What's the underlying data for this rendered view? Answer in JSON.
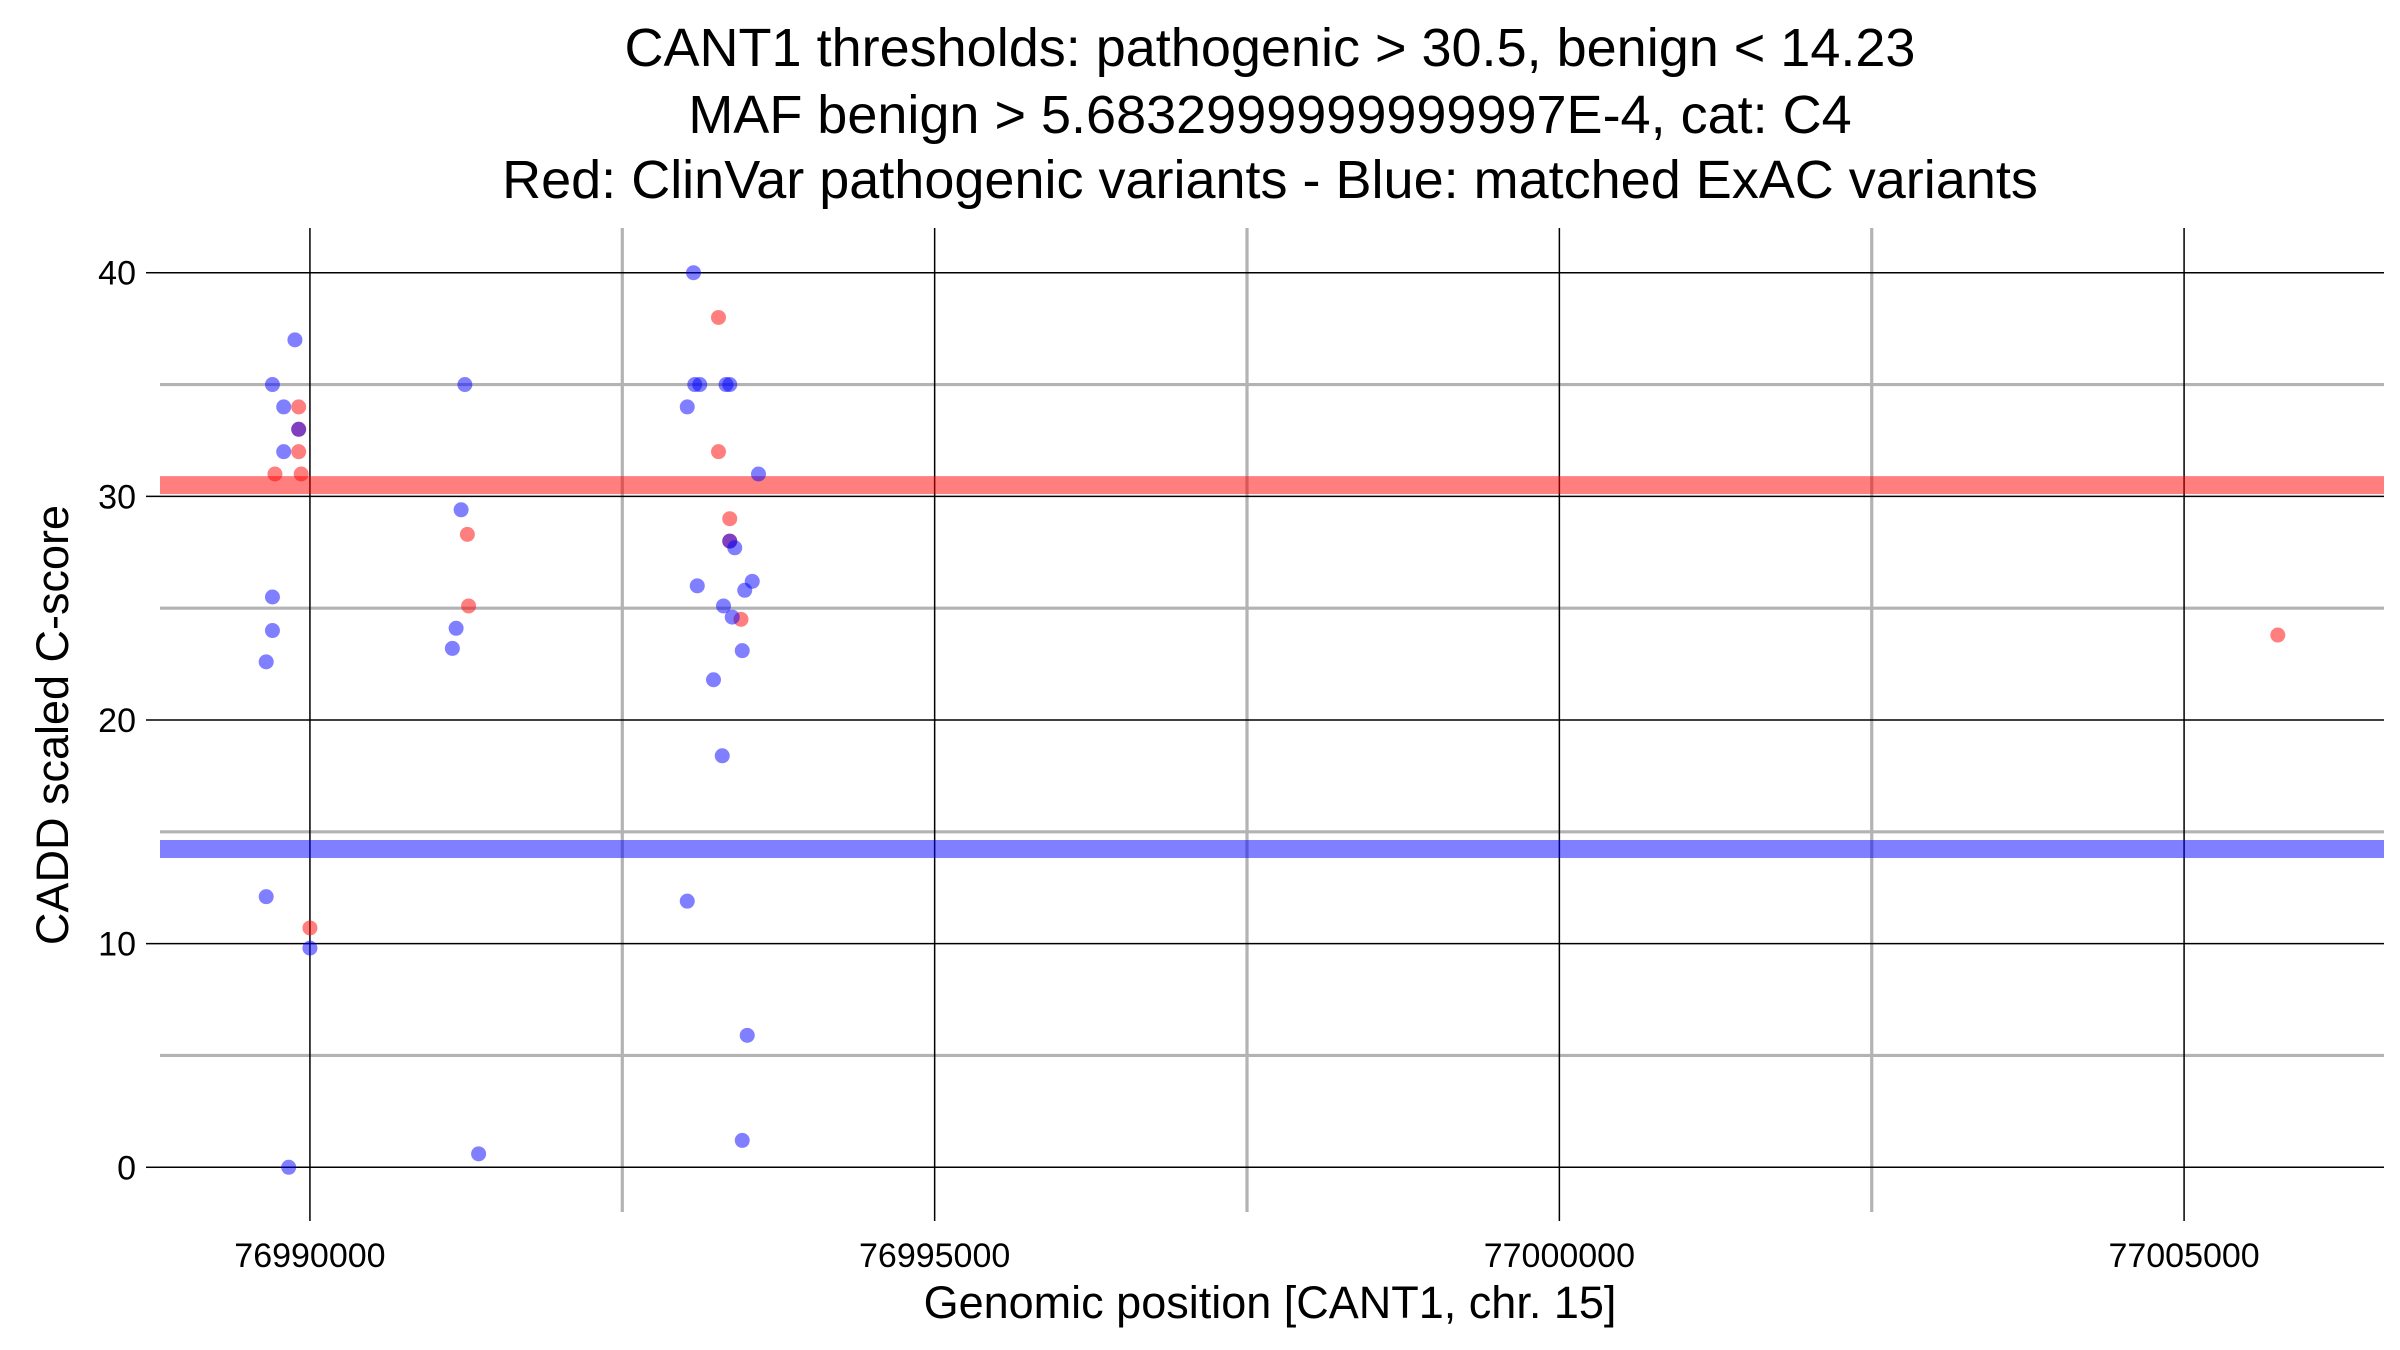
{
  "chart_data": {
    "type": "scatter",
    "title_lines": [
      "CANT1 thresholds: pathogenic > 30.5, benign < 14.23",
      "MAF benign > 5.6832999999999997E-4, cat: C4",
      "Red: ClinVar pathogenic variants - Blue: matched ExAC variants"
    ],
    "xlabel": "Genomic position [CANT1, chr. 15]",
    "ylabel": "CADD scaled C-score",
    "xlim": [
      76988800,
      77006600
    ],
    "ylim": [
      -2,
      42
    ],
    "x_ticks": [
      76990000,
      76995000,
      77000000,
      77005000
    ],
    "x_tick_labels": [
      "76990000",
      "76995000",
      "77000000",
      "77005000"
    ],
    "x_minor_ticks": [
      76992500,
      76997500,
      77002500
    ],
    "y_ticks": [
      0,
      10,
      20,
      30,
      40
    ],
    "y_tick_labels": [
      "0",
      "10",
      "20",
      "30",
      "40"
    ],
    "y_minor_ticks": [
      5,
      15,
      25,
      35
    ],
    "thresholds": [
      {
        "name": "pathogenic",
        "value": 30.5,
        "color": "#ff0000"
      },
      {
        "name": "benign",
        "value": 14.23,
        "color": "#0000ff"
      }
    ],
    "series": [
      {
        "name": "ClinVar pathogenic variants",
        "color": "#ff0000",
        "points": [
          [
            76989720,
            31.0
          ],
          [
            76989910,
            34.0
          ],
          [
            76989910,
            33.0
          ],
          [
            76989910,
            32.0
          ],
          [
            76989930,
            31.0
          ],
          [
            76990000,
            10.7
          ],
          [
            76991260,
            28.3
          ],
          [
            76991270,
            25.1
          ],
          [
            76993270,
            38.0
          ],
          [
            76993270,
            32.0
          ],
          [
            76993360,
            29.0
          ],
          [
            76993360,
            28.0
          ],
          [
            76993450,
            24.5
          ],
          [
            77005750,
            23.8
          ]
        ]
      },
      {
        "name": "matched ExAC variants",
        "color": "#0000ff",
        "points": [
          [
            76989650,
            22.6
          ],
          [
            76989650,
            12.1
          ],
          [
            76989700,
            35.0
          ],
          [
            76989700,
            25.5
          ],
          [
            76989700,
            24.0
          ],
          [
            76989790,
            34.0
          ],
          [
            76989790,
            32.0
          ],
          [
            76989830,
            0.0
          ],
          [
            76989880,
            37.0
          ],
          [
            76989910,
            33.0
          ],
          [
            76990000,
            9.8
          ],
          [
            76991140,
            23.2
          ],
          [
            76991170,
            24.1
          ],
          [
            76991210,
            29.4
          ],
          [
            76991240,
            35.0
          ],
          [
            76991350,
            0.6
          ],
          [
            76993020,
            34.0
          ],
          [
            76993020,
            11.9
          ],
          [
            76993070,
            40.0
          ],
          [
            76993080,
            35.0
          ],
          [
            76993100,
            26.0
          ],
          [
            76993120,
            35.0
          ],
          [
            76993230,
            21.8
          ],
          [
            76993300,
            18.4
          ],
          [
            76993310,
            25.1
          ],
          [
            76993330,
            35.0
          ],
          [
            76993360,
            35.0
          ],
          [
            76993360,
            28.0
          ],
          [
            76993380,
            24.6
          ],
          [
            76993400,
            27.7
          ],
          [
            76993460,
            23.1
          ],
          [
            76993460,
            1.2
          ],
          [
            76993480,
            25.8
          ],
          [
            76993500,
            5.9
          ],
          [
            76993540,
            26.2
          ],
          [
            76993590,
            31.0
          ]
        ]
      }
    ]
  }
}
